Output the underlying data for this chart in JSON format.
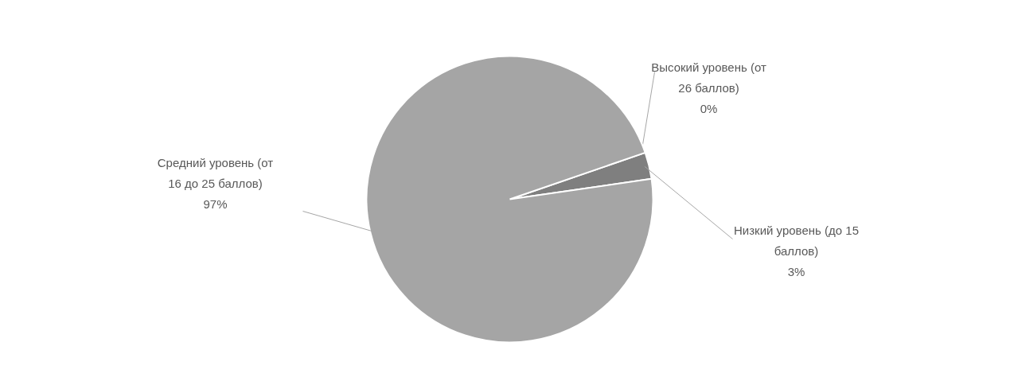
{
  "chart_data": {
    "type": "pie",
    "categories": [
      "Высокий уровень (от 26 баллов)",
      "Низкий уровень (до 15 баллов)",
      "Средний уровень (от 16 до 25 баллов)"
    ],
    "values": [
      0,
      3,
      97
    ],
    "colors": [
      "#d9d9d9",
      "#7f7f7f",
      "#a5a5a5"
    ],
    "value_labels": [
      "0%",
      "3%",
      "97%"
    ]
  }
}
